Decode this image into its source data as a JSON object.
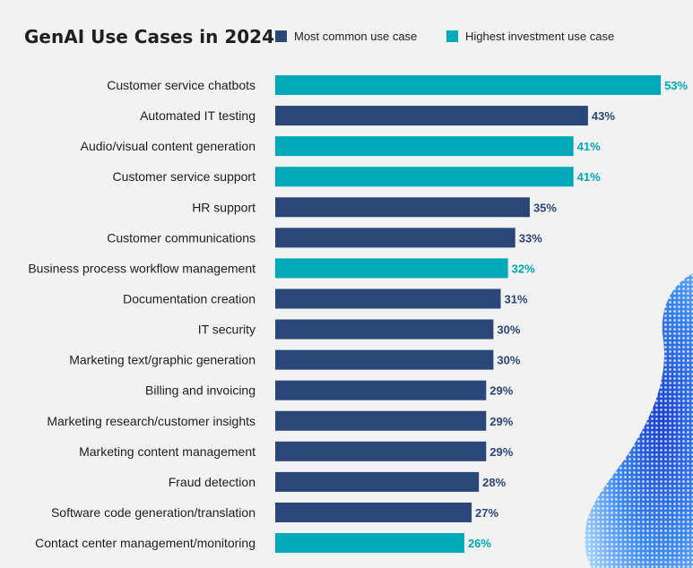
{
  "chart_data": {
    "type": "bar",
    "orientation": "horizontal",
    "title": "GenAI Use Cases in 2024",
    "legend": [
      {
        "name": "Most common use case",
        "color": "#2b4779"
      },
      {
        "name": "Highest investment use case",
        "color": "#00a9b8"
      }
    ],
    "value_suffix": "%",
    "xlim": [
      0,
      53
    ],
    "grid": false,
    "legend_position": "top",
    "categories": [
      "Customer service chatbots",
      "Automated IT testing",
      "Audio/visual content generation",
      "Customer service support",
      "HR support",
      "Customer communications",
      "Business process workflow management",
      "Documentation creation",
      "IT security",
      "Marketing text/graphic generation",
      "Billing and invoicing",
      "Marketing research/customer insights",
      "Marketing content management",
      "Fraud detection",
      "Software code generation/translation",
      "Contact center management/monitoring"
    ],
    "values": [
      53,
      43,
      41,
      41,
      35,
      33,
      32,
      31,
      30,
      30,
      29,
      29,
      29,
      28,
      27,
      26
    ],
    "series_index": [
      1,
      0,
      1,
      1,
      0,
      0,
      1,
      0,
      0,
      0,
      0,
      0,
      0,
      0,
      0,
      1
    ]
  }
}
